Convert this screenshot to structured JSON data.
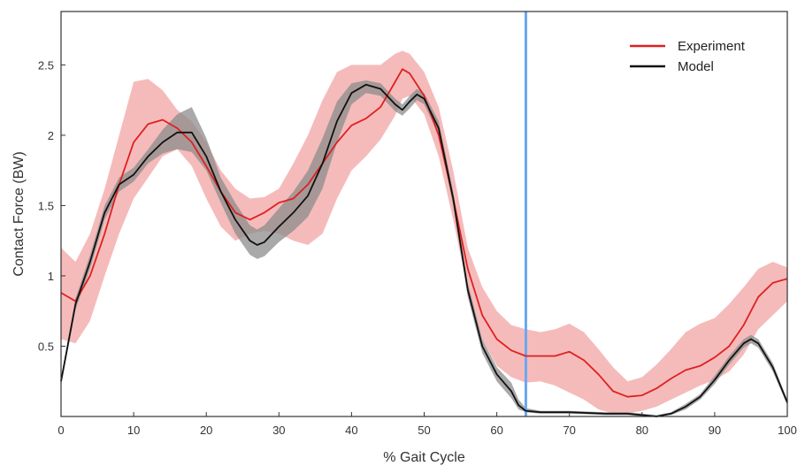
{
  "chart_data": {
    "type": "line",
    "xlabel": "% Gait Cycle",
    "ylabel": "Contact Force (BW)",
    "xlim": [
      0,
      100
    ],
    "ylim": [
      0,
      2.88
    ],
    "xticks": [
      0,
      10,
      20,
      30,
      40,
      50,
      60,
      70,
      80,
      90,
      100
    ],
    "yticks": [
      0.5,
      1,
      1.5,
      2,
      2.5
    ],
    "ytick_labels": [
      "0.5",
      "1",
      "1.5",
      "2",
      "2.5"
    ],
    "legend_position": "top-right",
    "grid": false,
    "vertical_marker_x": 64,
    "series": [
      {
        "name": "Experiment",
        "color": "#e02020",
        "band_color": "#f2aaaa",
        "x": [
          0,
          2,
          4,
          6,
          8,
          10,
          12,
          14,
          16,
          18,
          20,
          22,
          24,
          26,
          28,
          30,
          32,
          34,
          36,
          38,
          40,
          42,
          44,
          46,
          47,
          48,
          50,
          52,
          54,
          56,
          58,
          60,
          62,
          64,
          66,
          68,
          70,
          72,
          74,
          76,
          78,
          80,
          82,
          84,
          86,
          88,
          90,
          92,
          94,
          96,
          98,
          100
        ],
        "values": [
          0.88,
          0.82,
          1.0,
          1.3,
          1.65,
          1.95,
          2.08,
          2.11,
          2.05,
          1.95,
          1.78,
          1.6,
          1.45,
          1.4,
          1.45,
          1.52,
          1.55,
          1.65,
          1.8,
          1.95,
          2.07,
          2.12,
          2.2,
          2.38,
          2.47,
          2.44,
          2.28,
          2.0,
          1.55,
          1.05,
          0.72,
          0.55,
          0.47,
          0.43,
          0.43,
          0.43,
          0.46,
          0.4,
          0.3,
          0.18,
          0.14,
          0.15,
          0.2,
          0.27,
          0.33,
          0.36,
          0.42,
          0.5,
          0.65,
          0.85,
          0.95,
          0.98
        ],
        "lower": [
          0.55,
          0.52,
          0.68,
          1.0,
          1.3,
          1.55,
          1.7,
          1.85,
          1.9,
          1.78,
          1.55,
          1.35,
          1.25,
          1.3,
          1.32,
          1.3,
          1.25,
          1.22,
          1.3,
          1.55,
          1.75,
          1.85,
          1.97,
          2.14,
          2.26,
          2.28,
          2.15,
          1.85,
          1.4,
          0.9,
          0.55,
          0.36,
          0.28,
          0.24,
          0.25,
          0.22,
          0.17,
          0.12,
          0.05,
          0.02,
          0.02,
          0.04,
          0.07,
          0.12,
          0.17,
          0.22,
          0.26,
          0.32,
          0.44,
          0.62,
          0.72,
          0.82
        ],
        "upper": [
          1.2,
          1.1,
          1.3,
          1.62,
          2.0,
          2.38,
          2.4,
          2.32,
          2.18,
          2.1,
          1.95,
          1.75,
          1.62,
          1.55,
          1.56,
          1.62,
          1.8,
          2.0,
          2.25,
          2.45,
          2.5,
          2.5,
          2.5,
          2.58,
          2.6,
          2.58,
          2.45,
          2.2,
          1.75,
          1.2,
          0.92,
          0.75,
          0.65,
          0.62,
          0.6,
          0.62,
          0.66,
          0.6,
          0.48,
          0.35,
          0.25,
          0.28,
          0.37,
          0.48,
          0.6,
          0.66,
          0.7,
          0.8,
          0.92,
          1.05,
          1.1,
          1.06
        ]
      },
      {
        "name": "Model",
        "color": "#111111",
        "band_color": "#8c8c8c",
        "x": [
          0,
          2,
          4,
          6,
          8,
          10,
          12,
          14,
          16,
          18,
          20,
          22,
          24,
          26,
          27,
          28,
          30,
          32,
          34,
          36,
          38,
          40,
          42,
          44,
          46,
          47,
          48,
          49,
          50,
          52,
          54,
          56,
          58,
          60,
          62,
          63,
          64,
          66,
          70,
          75,
          78,
          80,
          82,
          84,
          86,
          88,
          90,
          92,
          94,
          95,
          96,
          98,
          100
        ],
        "values": [
          0.25,
          0.8,
          1.1,
          1.45,
          1.65,
          1.72,
          1.85,
          1.95,
          2.02,
          2.02,
          1.85,
          1.6,
          1.4,
          1.25,
          1.22,
          1.24,
          1.35,
          1.45,
          1.57,
          1.8,
          2.1,
          2.3,
          2.36,
          2.33,
          2.22,
          2.18,
          2.24,
          2.29,
          2.26,
          2.05,
          1.55,
          0.9,
          0.5,
          0.3,
          0.18,
          0.08,
          0.04,
          0.03,
          0.03,
          0.02,
          0.02,
          0.01,
          0.0,
          0.02,
          0.07,
          0.14,
          0.26,
          0.4,
          0.52,
          0.55,
          0.52,
          0.35,
          0.1
        ],
        "lower": [
          0.22,
          0.76,
          1.05,
          1.4,
          1.6,
          1.67,
          1.8,
          1.87,
          1.9,
          1.88,
          1.75,
          1.52,
          1.3,
          1.15,
          1.12,
          1.14,
          1.24,
          1.32,
          1.42,
          1.62,
          1.95,
          2.22,
          2.3,
          2.28,
          2.17,
          2.14,
          2.19,
          2.25,
          2.22,
          2.0,
          1.5,
          0.85,
          0.45,
          0.25,
          0.13,
          0.05,
          0.03,
          0.02,
          0.02,
          0.01,
          0.01,
          0.0,
          0.0,
          0.01,
          0.05,
          0.12,
          0.23,
          0.37,
          0.49,
          0.52,
          0.49,
          0.32,
          0.08
        ],
        "upper": [
          0.28,
          0.84,
          1.15,
          1.5,
          1.7,
          1.77,
          1.9,
          2.04,
          2.15,
          2.2,
          1.98,
          1.7,
          1.52,
          1.36,
          1.33,
          1.36,
          1.48,
          1.6,
          1.75,
          1.98,
          2.24,
          2.37,
          2.39,
          2.37,
          2.26,
          2.22,
          2.28,
          2.33,
          2.3,
          2.1,
          1.6,
          0.95,
          0.55,
          0.35,
          0.24,
          0.12,
          0.06,
          0.04,
          0.04,
          0.03,
          0.03,
          0.02,
          0.01,
          0.03,
          0.09,
          0.16,
          0.29,
          0.43,
          0.55,
          0.58,
          0.55,
          0.38,
          0.12
        ]
      }
    ]
  },
  "colors": {
    "marker": "#6aa8f0",
    "axis": "#333333"
  }
}
